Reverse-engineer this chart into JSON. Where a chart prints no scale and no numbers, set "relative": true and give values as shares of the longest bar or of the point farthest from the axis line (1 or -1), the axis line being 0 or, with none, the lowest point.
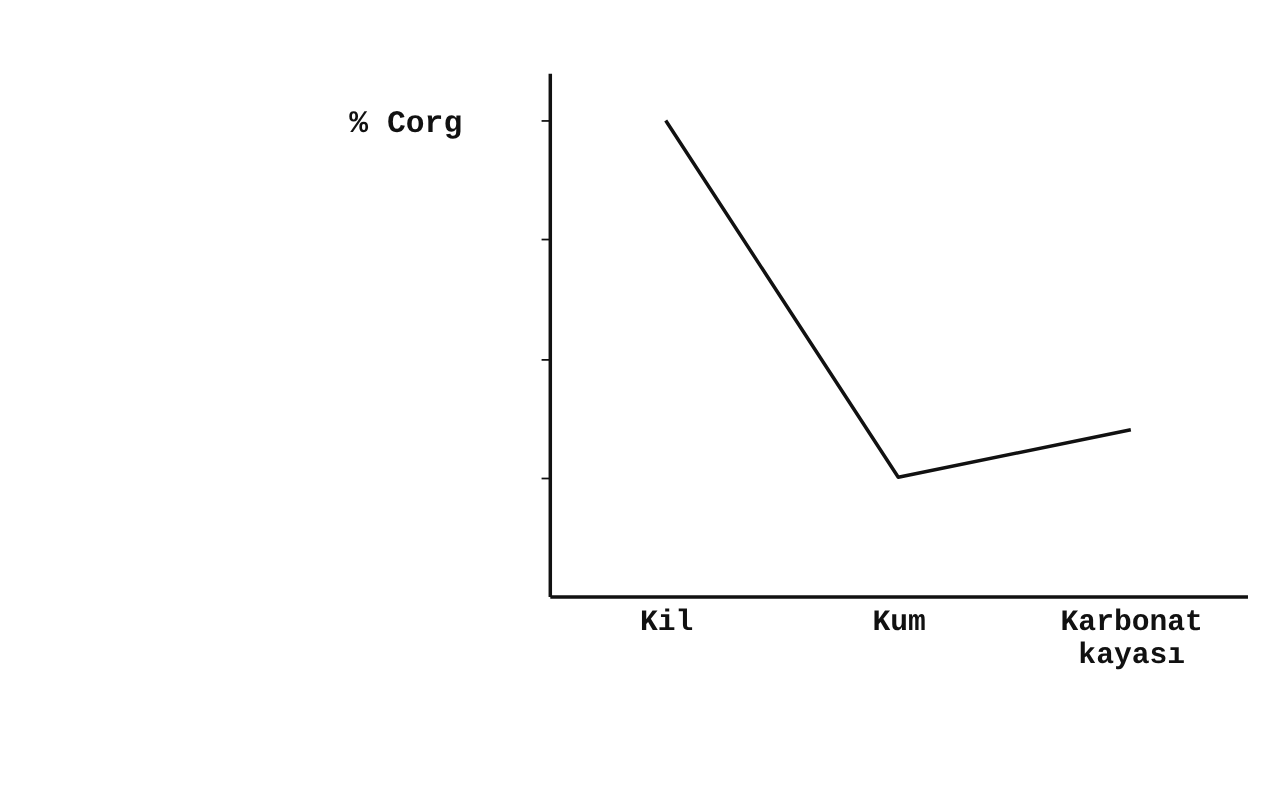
{
  "chart_data": {
    "type": "line",
    "ylabel": "% Corg",
    "relative": true,
    "categories": [
      "Kil",
      "Kum",
      "Karbonat kayası"
    ],
    "series": [
      {
        "color": "#111111",
        "values": [
          1,
          0.25,
          0.35
        ]
      }
    ],
    "grid": false,
    "marker": "none",
    "line_style": "solid"
  }
}
